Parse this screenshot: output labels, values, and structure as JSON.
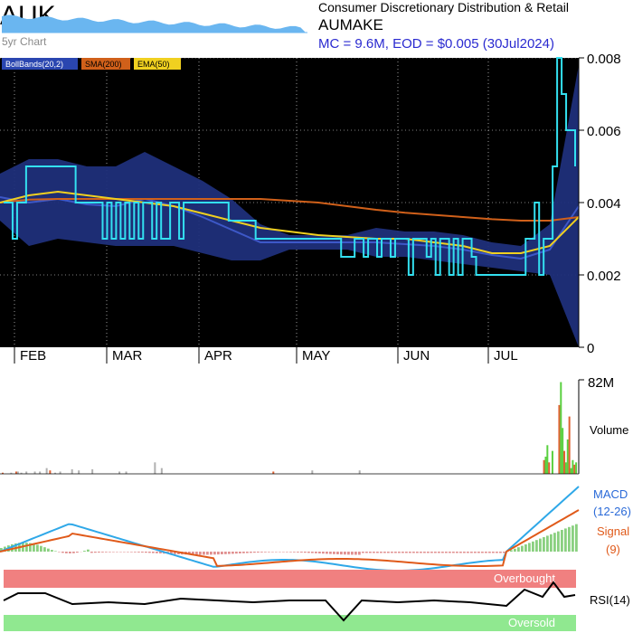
{
  "header": {
    "ticker": "AUK",
    "five_year_label": "5yr Chart",
    "sector": "Consumer Discretionary Distribution & Retail",
    "company": "AUMAKE",
    "market_info": "MC = 9.6M, EOD = $0.005 (30Jul2024)"
  },
  "legend": {
    "boll": "BollBands(20,2)",
    "sma": "SMA(200)",
    "ema": "EMA(50)"
  },
  "colors": {
    "background": "#000000",
    "boll_fill": "#1f2f7a",
    "price": "#33e0f0",
    "sma": "#d0601a",
    "ema": "#f0d020",
    "macd": "#2fa8e8",
    "signal": "#e05a1a",
    "vol_up": "#5ad040",
    "vol_down": "#e06030",
    "vol_flat": "#b0b0b0",
    "overbought": "#f08080",
    "oversold": "#90e890"
  },
  "chart_data": {
    "type": "line",
    "title": "AUMAKE",
    "ylim": [
      0,
      0.008
    ],
    "y_ticks": [
      "0.008",
      "0.006",
      "0.004",
      "0.002",
      "0"
    ],
    "months": [
      "FEB",
      "MAR",
      "APR",
      "MAY",
      "JUN",
      "JUL"
    ],
    "series": [
      {
        "name": "Price",
        "values": [
          0.004,
          0.004,
          0.003,
          0.004,
          0.004,
          0.005,
          0.005,
          0.005,
          0.005,
          0.005,
          0.005,
          0.005,
          0.005,
          0.005,
          0.005,
          0.005,
          0.004,
          0.004,
          0.004,
          0.004,
          0.004,
          0.004,
          0.003,
          0.004,
          0.003,
          0.004,
          0.003,
          0.004,
          0.003,
          0.004,
          0.003,
          0.004,
          0.004,
          0.003,
          0.004,
          0.003,
          0.003,
          0.004,
          0.004,
          0.003,
          0.004,
          0.004,
          0.004,
          0.004,
          0.004,
          0.004,
          0.004,
          0.004,
          0.004,
          0.004,
          0.0035,
          0.0035,
          0.0035,
          0.0035,
          0.0035,
          0.0035,
          0.003,
          0.003,
          0.003,
          0.003,
          0.003,
          0.003,
          0.003,
          0.003,
          0.003,
          0.003,
          0.003,
          0.003,
          0.003,
          0.003,
          0.003,
          0.003,
          0.003,
          0.003,
          0.003,
          0.0025,
          0.0025,
          0.0025,
          0.003,
          0.003,
          0.0025,
          0.003,
          0.003,
          0.0025,
          0.003,
          0.003,
          0.0025,
          0.003,
          0.003,
          0.003,
          0.002,
          0.003,
          0.003,
          0.003,
          0.0025,
          0.003,
          0.002,
          0.003,
          0.003,
          0.002,
          0.003,
          0.002,
          0.003,
          0.003,
          0.0025,
          0.002,
          0.002,
          0.002,
          0.002,
          0.002,
          0.002,
          0.002,
          0.002,
          0.002,
          0.002,
          0.002,
          0.003,
          0.003,
          0.004,
          0.002,
          0.003,
          0.003,
          0.005,
          0.008,
          0.007,
          0.006,
          0.006,
          0.005
        ]
      },
      {
        "name": "SMA(200)",
        "values": [
          0.004,
          0.00408,
          0.0041,
          0.0041,
          0.0041,
          0.0041,
          0.0041,
          0.0041,
          0.0041,
          0.0041,
          0.00405,
          0.004,
          0.0039,
          0.0038,
          0.00372,
          0.00366,
          0.0036,
          0.00354,
          0.0035,
          0.0035,
          0.0036
        ]
      },
      {
        "name": "EMA(50)",
        "values": [
          0.004,
          0.0042,
          0.0043,
          0.0042,
          0.0041,
          0.004,
          0.0039,
          0.0037,
          0.0035,
          0.0033,
          0.0032,
          0.0031,
          0.00305,
          0.003,
          0.003,
          0.0029,
          0.0028,
          0.0026,
          0.0026,
          0.0028,
          0.0036
        ]
      }
    ],
    "bollinger": {
      "upper": [
        0.0048,
        0.0052,
        0.0052,
        0.005,
        0.005,
        0.0054,
        0.005,
        0.0046,
        0.0041,
        0.0034,
        0.0031,
        0.0031,
        0.0031,
        0.0033,
        0.0032,
        0.0032,
        0.0031,
        0.0029,
        0.0028,
        0.0034,
        0.0078
      ],
      "lower": [
        0.0035,
        0.0028,
        0.003,
        0.0029,
        0.0028,
        0.0028,
        0.0028,
        0.0026,
        0.0024,
        0.0024,
        0.0027,
        0.0027,
        0.0027,
        0.0025,
        0.0025,
        0.0024,
        0.0023,
        0.0022,
        0.0021,
        0.002,
        0.0
      ]
    },
    "volume": {
      "max_label": "82M",
      "label": "Volume",
      "values": [
        1,
        0,
        0,
        0,
        0,
        1,
        0,
        0,
        2,
        2,
        0,
        1,
        0,
        0,
        2,
        0,
        0,
        0,
        0,
        2,
        0,
        0,
        2,
        0,
        0,
        0,
        5,
        0,
        3,
        0,
        0,
        1,
        0,
        0,
        2,
        0,
        0,
        0,
        0,
        0,
        0,
        4,
        0,
        0,
        0,
        3,
        0,
        0,
        0,
        0,
        0,
        0,
        0,
        4,
        0,
        0,
        0,
        0,
        0,
        0,
        0,
        0,
        0,
        0,
        0,
        0,
        0,
        0,
        0,
        2,
        0,
        0,
        0,
        2,
        0,
        0,
        0,
        0,
        0,
        0,
        0,
        0,
        0,
        0,
        0,
        0,
        0,
        0,
        0,
        0,
        10,
        0,
        0,
        0,
        5,
        0,
        0,
        0,
        0,
        0,
        0,
        0,
        0,
        0,
        0,
        0,
        0,
        0,
        0,
        0,
        0,
        0,
        0,
        0,
        0,
        0,
        0,
        0,
        0,
        0,
        0,
        0,
        0,
        0,
        0,
        0,
        0,
        0,
        0,
        0,
        0,
        0,
        0,
        0,
        0,
        0,
        0,
        0,
        0,
        0,
        0,
        0,
        0,
        0,
        0,
        0,
        0,
        0,
        0,
        0,
        0,
        0,
        0,
        0,
        0,
        0,
        0,
        0,
        0,
        0,
        2,
        0,
        0,
        0,
        0,
        0,
        0,
        0,
        0,
        0,
        0,
        0,
        0,
        0,
        0,
        0,
        0,
        0,
        0,
        0,
        0,
        0,
        0,
        3,
        0,
        0,
        0,
        0,
        0,
        0,
        0,
        0,
        0,
        0,
        0,
        0,
        0,
        0,
        0,
        0,
        0,
        0,
        0,
        0,
        0,
        0,
        0,
        0,
        0,
        0,
        0,
        3,
        0,
        0,
        0,
        0,
        0,
        0,
        0,
        0,
        0,
        0,
        0,
        0,
        0,
        0,
        0,
        0,
        0,
        0,
        0,
        0,
        0,
        0,
        0,
        0,
        0,
        0,
        0,
        0,
        0,
        0,
        0,
        0,
        0,
        0,
        0,
        0,
        0,
        0,
        0,
        0,
        0,
        0,
        0,
        0,
        0,
        0,
        0,
        0,
        0,
        0,
        0,
        0,
        0,
        0,
        0,
        0,
        0,
        0,
        0,
        0,
        0,
        0,
        0,
        0,
        0,
        0,
        0,
        0,
        0,
        0,
        0,
        0,
        0,
        0,
        0,
        0,
        0,
        0,
        0,
        0,
        0,
        0,
        0,
        0,
        0,
        0,
        0,
        0,
        0,
        0,
        0,
        0,
        0,
        0,
        0,
        0,
        0,
        0,
        0,
        0,
        0,
        0,
        0,
        0,
        0,
        0,
        0,
        0,
        12,
        15,
        25,
        10,
        0,
        20,
        0,
        0,
        0,
        60,
        80,
        40,
        20,
        10,
        30,
        50,
        5,
        12,
        8,
        10
      ]
    },
    "macd": {
      "label": "MACD",
      "params": "(12-26)",
      "signal_label": "Signal",
      "signal_params": "(9)"
    },
    "rsi": {
      "label": "RSI(14)",
      "overbought_label": "Overbought",
      "oversold_label": "Oversold"
    }
  }
}
